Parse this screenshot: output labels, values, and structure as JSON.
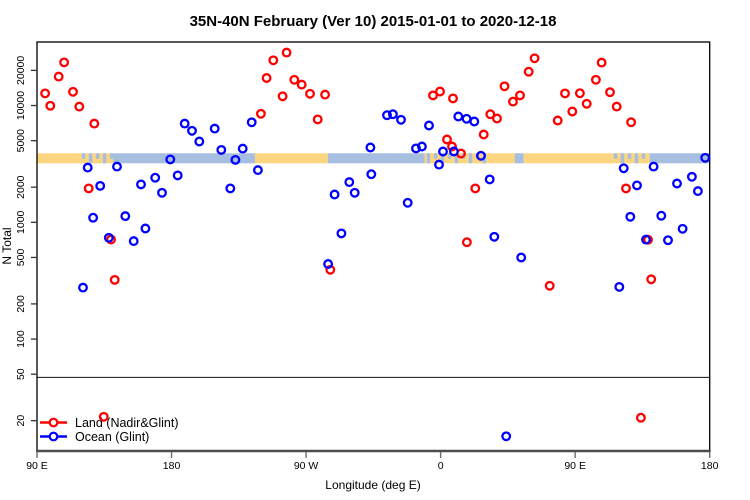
{
  "title": "35N-40N February (Ver 10)   2015-01-01 to 2020-12-18",
  "axes": {
    "x": {
      "label": "Longitude (deg E)",
      "tick_labels": [
        "90 E",
        "180",
        "90 W",
        "0",
        "90 E",
        "180"
      ],
      "tick_positions_deg": [
        90,
        180,
        270,
        360,
        450,
        540
      ]
    },
    "y": {
      "label": "N Total",
      "scale": "log10",
      "tick_values": [
        20,
        50,
        100,
        200,
        500,
        1000,
        2000,
        5000,
        10000,
        20000
      ],
      "tick_labels": [
        "20",
        "50",
        "100",
        "200",
        "500",
        "1000",
        "2000",
        "5000",
        "10000",
        "20000"
      ]
    }
  },
  "legend": {
    "items": [
      {
        "label": "Land (Nadir&Glint)",
        "color": "#ff0000"
      },
      {
        "label": "Ocean (Glint)",
        "color": "#0000ff"
      }
    ]
  },
  "colors": {
    "land_point": "#ff0000",
    "ocean_point": "#0000ff",
    "band_land": "#fbd580",
    "band_ocean": "#a6bedf",
    "plot_border": "#000000",
    "bottom_axis": "#4d4d4d",
    "ref_line": "#111111"
  },
  "land_ocean_strip": {
    "n_range": [
      3200,
      3900
    ],
    "segments": [
      {
        "from": 90.0,
        "to": 118.7,
        "surface": "land"
      },
      {
        "from": 118.7,
        "to": 140.8,
        "surface": "mix"
      },
      {
        "from": 140.8,
        "to": 235.8,
        "surface": "ocean"
      },
      {
        "from": 235.8,
        "to": 284.6,
        "surface": "land"
      },
      {
        "from": 284.6,
        "to": 349.4,
        "surface": "ocean"
      },
      {
        "from": 349.4,
        "to": 390.9,
        "surface": "mix"
      },
      {
        "from": 390.9,
        "to": 409.6,
        "surface": "land"
      },
      {
        "from": 409.6,
        "to": 415.6,
        "surface": "ocean"
      },
      {
        "from": 415.6,
        "to": 474.5,
        "surface": "land"
      },
      {
        "from": 474.5,
        "to": 499.9,
        "surface": "mix"
      },
      {
        "from": 499.9,
        "to": 540.0,
        "surface": "ocean"
      }
    ]
  },
  "ref_line_n": 47,
  "chart_data": {
    "type": "scatter",
    "title": "35N-40N February (Ver 10)   2015-01-01 to 2020-12-18",
    "xlabel": "Longitude (deg E)",
    "ylabel": "N Total",
    "x_axis_note": "x is degrees east along an extended 450-deg axis: 90E(90) -> 180(180) -> 90W(270) -> 0(360) -> 90E(450) -> 180(540); the 90E-180 segment repeats at both ends",
    "xlim": [
      90,
      540
    ],
    "ylim": [
      11,
      35000
    ],
    "y_log": true,
    "legend_position": "bottom-left",
    "grid": false,
    "series": [
      {
        "name": "Land (Nadir&Glint)",
        "color": "#ff0000",
        "points": [
          [
            108.1,
            23400
          ],
          [
            104.5,
            17700
          ],
          [
            95.4,
            12700
          ],
          [
            98.9,
            9950
          ],
          [
            114.1,
            13100
          ],
          [
            118.3,
            9800
          ],
          [
            128.3,
            7000
          ],
          [
            124.6,
            1950
          ],
          [
            139.5,
            713
          ],
          [
            142.0,
            321
          ],
          [
            134.6,
            21.6
          ],
          [
            257.0,
            28400
          ],
          [
            248.1,
            24400
          ],
          [
            243.6,
            17200
          ],
          [
            262.1,
            16600
          ],
          [
            267.1,
            15100
          ],
          [
            254.3,
            12000
          ],
          [
            272.6,
            12600
          ],
          [
            282.7,
            12400
          ],
          [
            239.8,
            8500
          ],
          [
            277.8,
            7600
          ],
          [
            286.2,
            392
          ],
          [
            359.6,
            13200
          ],
          [
            354.9,
            12200
          ],
          [
            368.3,
            11500
          ],
          [
            364.3,
            5120
          ],
          [
            367.6,
            4460
          ],
          [
            373.6,
            3880
          ],
          [
            388.8,
            5650
          ],
          [
            393.2,
            8430
          ],
          [
            397.7,
            7740
          ],
          [
            402.7,
            14600
          ],
          [
            408.4,
            10800
          ],
          [
            413.1,
            12200
          ],
          [
            418.9,
            19500
          ],
          [
            422.9,
            25400
          ],
          [
            433.0,
            286
          ],
          [
            383.2,
            1950
          ],
          [
            377.6,
            676
          ],
          [
            438.3,
            7440
          ],
          [
            443.2,
            12700
          ],
          [
            448.1,
            8890
          ],
          [
            453.2,
            12760
          ],
          [
            457.7,
            10350
          ],
          [
            463.9,
            16600
          ],
          [
            467.7,
            23300
          ],
          [
            473.3,
            13000
          ],
          [
            477.8,
            9800
          ],
          [
            484.0,
            1950
          ],
          [
            487.4,
            7200
          ],
          [
            498.7,
            710
          ],
          [
            500.9,
            325
          ],
          [
            494.0,
            21.2
          ]
        ]
      },
      {
        "name": "Ocean (Glint)",
        "color": "#0000ff",
        "points": [
          [
            120.8,
            276
          ],
          [
            123.9,
            2940
          ],
          [
            127.5,
            1094
          ],
          [
            132.3,
            2050
          ],
          [
            138.0,
            736
          ],
          [
            143.5,
            3000
          ],
          [
            149.1,
            1130
          ],
          [
            154.7,
            690
          ],
          [
            159.6,
            2110
          ],
          [
            162.5,
            885
          ],
          [
            169.1,
            2410
          ],
          [
            173.6,
            1790
          ],
          [
            179.2,
            3460
          ],
          [
            184.1,
            2520
          ],
          [
            188.8,
            7000
          ],
          [
            193.7,
            6070
          ],
          [
            198.6,
            4920
          ],
          [
            208.9,
            6350
          ],
          [
            213.3,
            4170
          ],
          [
            219.3,
            1950
          ],
          [
            222.7,
            3420
          ],
          [
            227.6,
            4280
          ],
          [
            233.6,
            7190
          ],
          [
            237.8,
            2800
          ],
          [
            284.7,
            439
          ],
          [
            289.1,
            1730
          ],
          [
            293.6,
            803
          ],
          [
            298.9,
            2210
          ],
          [
            302.5,
            1790
          ],
          [
            313.0,
            4370
          ],
          [
            313.6,
            2580
          ],
          [
            324.1,
            8260
          ],
          [
            328.1,
            8430
          ],
          [
            333.5,
            7550
          ],
          [
            338.0,
            1470
          ],
          [
            343.5,
            4290
          ],
          [
            347.5,
            4460
          ],
          [
            352.2,
            6750
          ],
          [
            361.6,
            4040
          ],
          [
            368.9,
            4040
          ],
          [
            358.9,
            3120
          ],
          [
            371.8,
            8060
          ],
          [
            377.4,
            7690
          ],
          [
            382.5,
            7300
          ],
          [
            387.0,
            3710
          ],
          [
            392.8,
            2330
          ],
          [
            395.9,
            752
          ],
          [
            403.9,
            14.7
          ],
          [
            413.9,
            499
          ],
          [
            479.5,
            280
          ],
          [
            482.5,
            2900
          ],
          [
            486.9,
            1115
          ],
          [
            491.4,
            2070
          ],
          [
            497.4,
            711
          ],
          [
            502.5,
            3000
          ],
          [
            507.6,
            1140
          ],
          [
            512.1,
            703
          ],
          [
            518.1,
            2150
          ],
          [
            521.9,
            879
          ],
          [
            528.1,
            2455
          ],
          [
            532.1,
            1850
          ],
          [
            537.0,
            3570
          ]
        ]
      }
    ]
  }
}
